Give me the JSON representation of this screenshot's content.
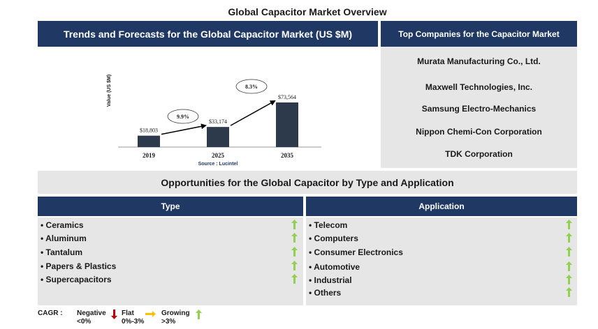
{
  "page": {
    "title": "Global Capacitor Market Overview"
  },
  "chart_section": {
    "header": "Trends and Forecasts for the Global Capacitor Market (US $M)",
    "source": "Source : Lucintel"
  },
  "chart_data": {
    "type": "bar",
    "categories": [
      "2019",
      "2025",
      "2035"
    ],
    "values": [
      18803,
      33174,
      73564
    ],
    "value_labels": [
      "$18,803",
      "$33,174",
      "$73,564"
    ],
    "ylabel": "Value (US $M)",
    "ylim": [
      0,
      80000
    ],
    "grid": false,
    "bar_color": "#2d3a4b",
    "cagr_annotations": [
      {
        "from": "2019",
        "to": "2025",
        "label": "9.9%"
      },
      {
        "from": "2025",
        "to": "2035",
        "label": "8.3%"
      }
    ]
  },
  "companies": {
    "header": "Top Companies for the Capacitor Market",
    "items": [
      "Murata Manufacturing Co., Ltd.",
      "Maxwell Technologies, Inc.",
      "Samsung Electro-Mechanics",
      "Nippon Chemi-Con Corporation",
      "TDK Corporation"
    ]
  },
  "opportunities": {
    "header": "Opportunities for the Global Capacitor by Type and Application",
    "type": {
      "header": "Type",
      "items": [
        "• Ceramics",
        "• Aluminum",
        "• Tantalum",
        "• Papers & Plastics",
        "• Supercapacitors"
      ]
    },
    "application": {
      "header": "Application",
      "items": [
        "• Telecom",
        "• Computers",
        "• Consumer Electronics",
        "• Automotive",
        "• Industrial",
        "• Others"
      ]
    },
    "trend_color": "#92d050"
  },
  "legend": {
    "label": "CAGR :",
    "negative": {
      "name": "Negative",
      "range": "<0%",
      "color": "#c00000"
    },
    "flat": {
      "name": "Flat",
      "range": "0%-3%",
      "color": "#ffc000"
    },
    "growing": {
      "name": "Growing",
      "range": ">3%",
      "color": "#92d050"
    }
  }
}
